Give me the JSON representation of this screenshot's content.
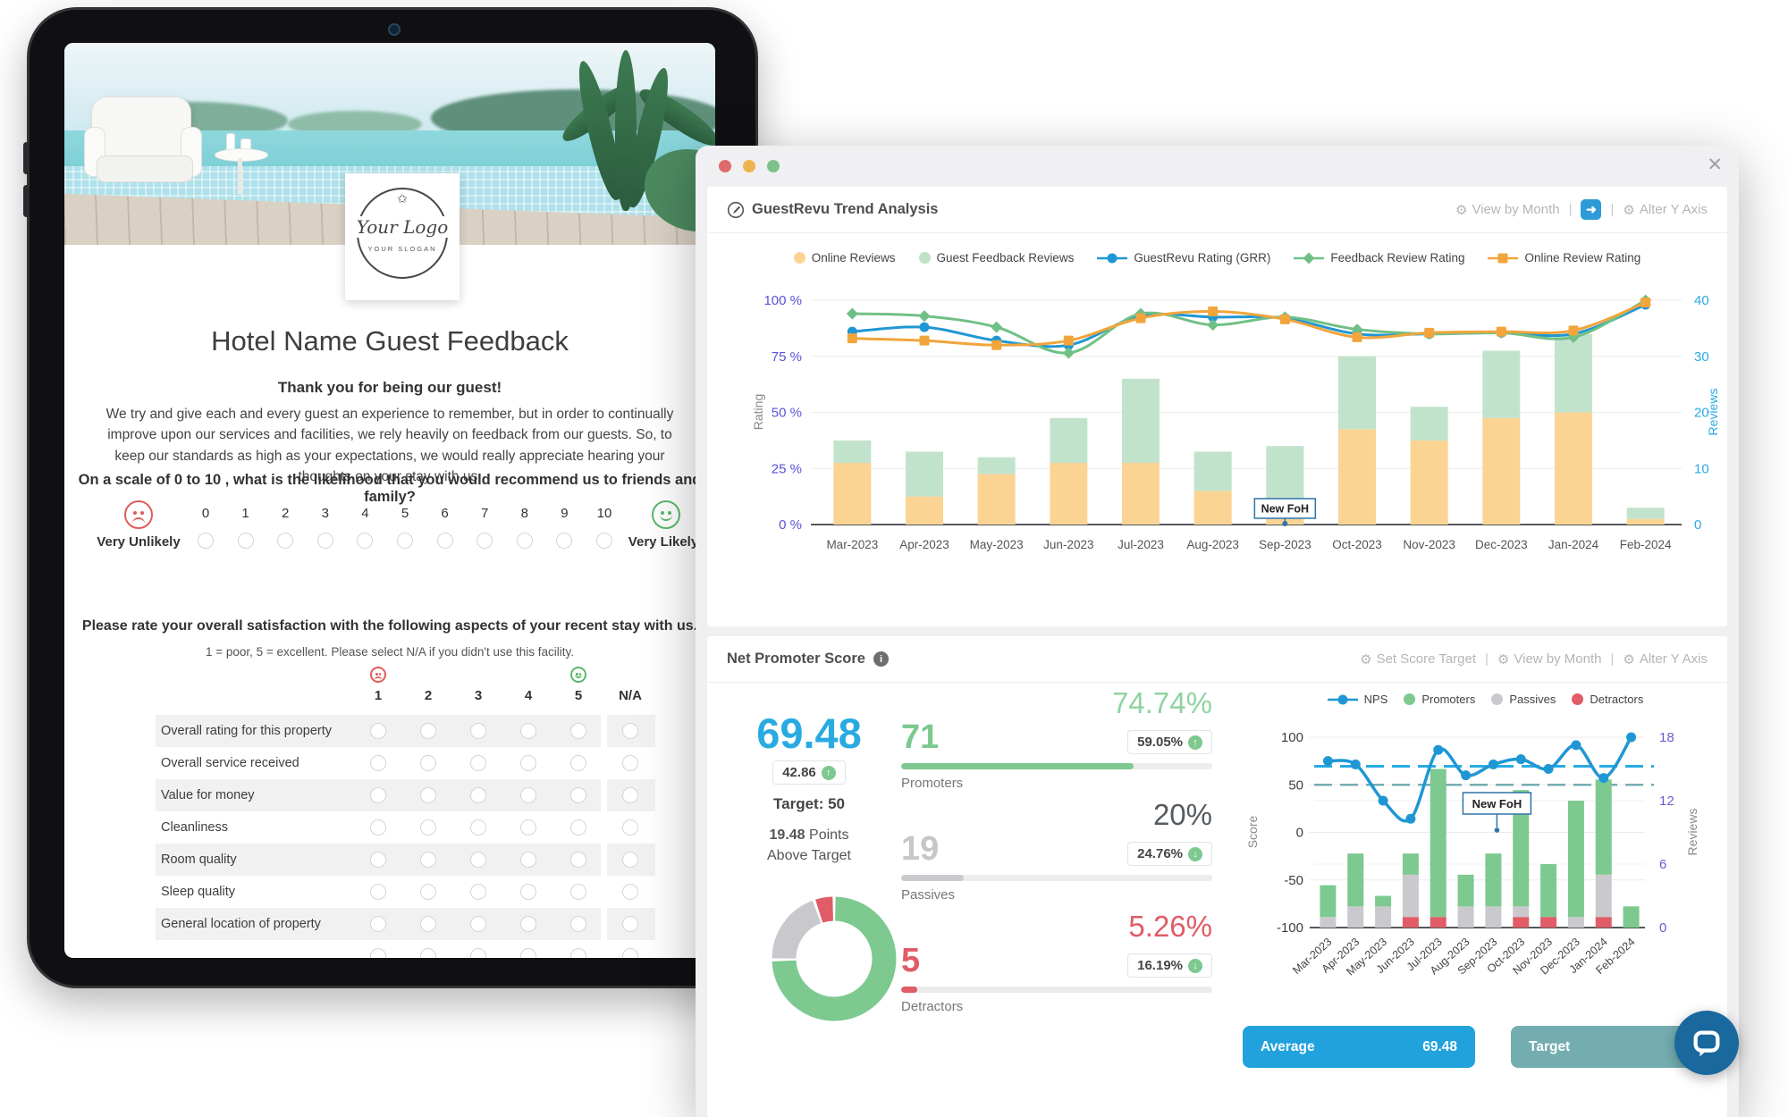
{
  "tablet": {
    "logo": {
      "line1": "Your Logo",
      "line2": "YOUR SLOGAN"
    },
    "survey": {
      "title": "Hotel Name Guest Feedback",
      "greeting": "Thank you for being our guest!",
      "intro": "We try and give each and every guest an experience to remember, but in order to continually improve upon our services and facilities, we rely heavily on feedback from our guests. So, to keep our standards as high as your expectations, we would really appreciate hearing your thoughts on your stay with us.",
      "nps_question": "On a scale of 0 to 10 , what is the likelihood that you would recommend us to friends and family?",
      "scale_left": "Very Unlikely",
      "scale_right": "Very Likely",
      "scale_values": [
        "0",
        "1",
        "2",
        "3",
        "4",
        "5",
        "6",
        "7",
        "8",
        "9",
        "10"
      ],
      "rating_heading": "Please rate your overall satisfaction with the following aspects of your recent stay with us.",
      "rating_subheading": "1 = poor, 5 = excellent. Please select N/A if you didn't use this facility.",
      "rating_columns": [
        "1",
        "2",
        "3",
        "4",
        "5",
        "N/A"
      ],
      "rating_rows": [
        "Overall rating for this property",
        "Overall service received",
        "Value for money",
        "Cleanliness",
        "Room quality",
        "Sleep quality",
        "General location of property"
      ]
    }
  },
  "window": {
    "trend": {
      "title": "GuestRevu Trend Analysis",
      "controls": [
        "View by Month",
        "Alter Y Axis"
      ]
    },
    "nps": {
      "title": "Net Promoter Score",
      "controls": [
        "Set Score Target",
        "View by Month",
        "Alter Y Axis"
      ],
      "score": "69.48",
      "score_change": "42.86",
      "target_label": "Target: 50",
      "points_value": "19.48",
      "points_suffix": "Points Above Target",
      "groups": [
        {
          "count": "71",
          "label": "Promoters",
          "pct": "74.74%",
          "change": "59.05%",
          "dir": "up",
          "fill": 74.74,
          "count_color": "#7dc98f",
          "pct_color": "#8fd3a0",
          "bar_color": "#7dc98f"
        },
        {
          "count": "19",
          "label": "Passives",
          "pct": "20%",
          "change": "24.76%",
          "dir": "down",
          "fill": 20,
          "count_color": "#c6c6cb",
          "pct_color": "#555b60",
          "bar_color": "#c9c9ce"
        },
        {
          "count": "5",
          "label": "Detractors",
          "pct": "5.26%",
          "change": "16.19%",
          "dir": "down",
          "fill": 5.26,
          "count_color": "#e05c66",
          "pct_color": "#e05c66",
          "bar_color": "#e05c66"
        }
      ],
      "buttons": [
        {
          "label": "Average",
          "value": "69.48"
        },
        {
          "label": "Target",
          "value": ""
        }
      ]
    }
  },
  "chart_data": [
    {
      "id": "trend",
      "type": "bar",
      "subtype": "stacked-bar-and-line-combo",
      "title": "GuestRevu Trend Analysis",
      "categories": [
        "Mar-2023",
        "Apr-2023",
        "May-2023",
        "Jun-2023",
        "Jul-2023",
        "Aug-2023",
        "Sep-2023",
        "Oct-2023",
        "Nov-2023",
        "Dec-2023",
        "Jan-2024",
        "Feb-2024"
      ],
      "bar_series": [
        {
          "name": "Online Reviews",
          "axis": "right",
          "color": "#fbd494",
          "values": [
            11,
            5,
            9,
            11,
            11,
            6,
            1,
            17,
            15,
            19,
            20,
            1
          ]
        },
        {
          "name": "Guest Feedback Reviews",
          "axis": "right",
          "color": "#c2e3cb",
          "values": [
            4,
            8,
            3,
            8,
            15,
            7,
            13,
            13,
            6,
            12,
            14,
            2
          ]
        }
      ],
      "line_series": [
        {
          "name": "GuestRevu Rating (GRR)",
          "axis": "left",
          "marker": "circle",
          "color": "#1f97d4",
          "values": [
            86,
            88,
            82,
            80,
            93,
            92.5,
            92,
            85,
            85,
            85.5,
            85,
            98
          ]
        },
        {
          "name": "Feedback Review Rating",
          "axis": "left",
          "marker": "diamond",
          "color": "#70c086",
          "values": [
            94,
            93,
            88,
            76.5,
            94,
            89,
            92.5,
            87,
            85,
            85.5,
            83.5,
            100
          ]
        },
        {
          "name": "Online Review Rating",
          "axis": "left",
          "marker": "square",
          "color": "#f1a53c",
          "values": [
            83,
            82,
            80,
            82,
            92,
            95,
            91.5,
            83.5,
            85.5,
            86,
            86.5,
            99
          ]
        }
      ],
      "left_axis": {
        "label": "Rating",
        "color": "#5b51d8",
        "min": 0,
        "max": 100,
        "tick_values": [
          100,
          75,
          50,
          25,
          0
        ],
        "tick_labels": [
          "100 %",
          "75 %",
          "50 %",
          "25 %",
          "0 %"
        ]
      },
      "right_axis": {
        "label": "Reviews",
        "color": "#29abe2",
        "min": 0,
        "max": 40,
        "tick_values": [
          40,
          30,
          20,
          10,
          0
        ],
        "tick_labels": [
          "40",
          "30",
          "20",
          "10",
          "0"
        ]
      },
      "legend_position": "top",
      "grid": true,
      "annotation": {
        "text": "New FoH",
        "category": "Sep-2023"
      }
    },
    {
      "id": "nps",
      "type": "bar",
      "subtype": "stacked-bar-and-line-combo",
      "categories": [
        "Mar-2023",
        "Apr-2023",
        "May-2023",
        "Jun-2023",
        "Jul-2023",
        "Aug-2023",
        "Sep-2023",
        "Oct-2023",
        "Nov-2023",
        "Dec-2023",
        "Jan-2024",
        "Feb-2024"
      ],
      "bar_series": [
        {
          "name": "Detractors",
          "axis": "right",
          "color": "#e05c66",
          "values": [
            0,
            0,
            0,
            1,
            1,
            0,
            0,
            1,
            1,
            0,
            1,
            0
          ]
        },
        {
          "name": "Passives",
          "axis": "right",
          "color": "#c9c9ce",
          "values": [
            1,
            2,
            2,
            4,
            0,
            2,
            2,
            1,
            0,
            1,
            4,
            0
          ]
        },
        {
          "name": "Promoters",
          "axis": "right",
          "color": "#7dc98f",
          "values": [
            3,
            5,
            1,
            2,
            14,
            3,
            5,
            11,
            5,
            11,
            9,
            2
          ]
        }
      ],
      "line_series": [
        {
          "name": "NPS",
          "axis": "left",
          "marker": "circle",
          "color": "#1f97d4",
          "values": [
            75,
            71.43,
            33.33,
            14.29,
            86.67,
            60,
            71.43,
            76.92,
            66.67,
            91.67,
            57.14,
            100
          ]
        }
      ],
      "left_axis": {
        "label": "Score",
        "color": "#3d3d3d",
        "min": -100,
        "max": 100,
        "tick_values": [
          100,
          50,
          0,
          -50,
          -100
        ],
        "tick_labels": [
          "100",
          "50",
          "0",
          "-50",
          "-100"
        ]
      },
      "right_axis": {
        "label": "Reviews",
        "color": "#6a5ad0",
        "min": 0,
        "max": 18,
        "tick_values": [
          18,
          12,
          6,
          0
        ],
        "tick_labels": [
          "18",
          "12",
          "6",
          "0"
        ]
      },
      "reference_lines": [
        {
          "name": "Average",
          "value": 69.48,
          "color": "#29abe2",
          "style": "dashed"
        },
        {
          "name": "Target",
          "value": 50,
          "color": "#74adb0",
          "style": "dashed"
        }
      ],
      "legend_position": "top",
      "grid": true,
      "annotation": {
        "text": "New FoH",
        "category": "Sep-2023"
      }
    },
    {
      "id": "nps-donut",
      "type": "pie",
      "slices": [
        {
          "label": "Promoters",
          "value": 74.74,
          "color": "#7dc98f"
        },
        {
          "label": "Passives",
          "value": 20,
          "color": "#c9c9cd"
        },
        {
          "label": "Detractors",
          "value": 5.26,
          "color": "#e05c66"
        }
      ]
    }
  ]
}
